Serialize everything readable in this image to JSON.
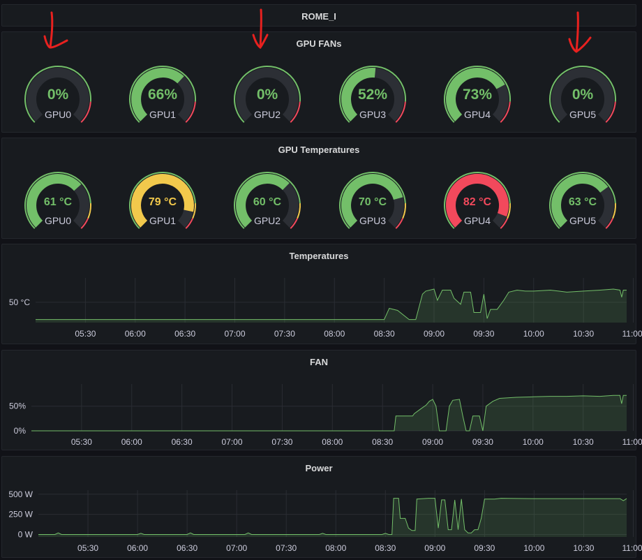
{
  "dashboard": {
    "row_title": "ROME_I"
  },
  "colors": {
    "green": "#73bf69",
    "yellow": "#f2c94c",
    "red": "#f2495c",
    "track": "#2c2f35"
  },
  "fans": {
    "title": "GPU FANs",
    "gauges": [
      {
        "label": "GPU0",
        "value": 0,
        "text": "0%"
      },
      {
        "label": "GPU1",
        "value": 66,
        "text": "66%"
      },
      {
        "label": "GPU2",
        "value": 0,
        "text": "0%"
      },
      {
        "label": "GPU3",
        "value": 52,
        "text": "52%"
      },
      {
        "label": "GPU4",
        "value": 73,
        "text": "73%"
      },
      {
        "label": "GPU5",
        "value": 0,
        "text": "0%"
      }
    ]
  },
  "temps": {
    "title": "GPU Temperatures",
    "gauges": [
      {
        "label": "GPU0",
        "value": 61,
        "text": "61 °C",
        "status": "green"
      },
      {
        "label": "GPU1",
        "value": 79,
        "text": "79 °C",
        "status": "yellow"
      },
      {
        "label": "GPU2",
        "value": 60,
        "text": "60 °C",
        "status": "green"
      },
      {
        "label": "GPU3",
        "value": 70,
        "text": "70 °C",
        "status": "green"
      },
      {
        "label": "GPU4",
        "value": 82,
        "text": "82 °C",
        "status": "red"
      },
      {
        "label": "GPU5",
        "value": 63,
        "text": "63 °C",
        "status": "green"
      }
    ]
  },
  "chart_data": [
    {
      "type": "area",
      "title": "Temperatures",
      "x_tick_labels": [
        "05:30",
        "06:00",
        "06:30",
        "07:00",
        "07:30",
        "08:00",
        "08:30",
        "09:00",
        "09:30",
        "10:00",
        "10:30",
        "11:00"
      ],
      "y_ticks": [
        {
          "label": "50 °C",
          "value": 50
        }
      ],
      "ylim": [
        30,
        74
      ],
      "x_range_min": [
        0,
        356
      ],
      "x_tick_min": [
        30,
        60,
        90,
        120,
        150,
        180,
        210,
        240,
        270,
        300,
        330,
        360
      ],
      "points": [
        [
          0,
          33
        ],
        [
          100,
          33
        ],
        [
          210,
          33
        ],
        [
          213,
          44
        ],
        [
          218,
          42
        ],
        [
          225,
          33
        ],
        [
          229,
          33
        ],
        [
          233,
          58
        ],
        [
          235,
          61
        ],
        [
          240,
          63
        ],
        [
          242,
          52
        ],
        [
          245,
          62
        ],
        [
          250,
          62
        ],
        [
          252,
          54
        ],
        [
          256,
          48
        ],
        [
          258,
          60
        ],
        [
          262,
          60
        ],
        [
          264,
          40
        ],
        [
          268,
          40
        ],
        [
          270,
          58
        ],
        [
          272,
          34
        ],
        [
          274,
          43
        ],
        [
          278,
          43
        ],
        [
          282,
          52
        ],
        [
          285,
          60
        ],
        [
          290,
          62
        ],
        [
          295,
          61
        ],
        [
          300,
          61
        ],
        [
          310,
          62
        ],
        [
          315,
          61
        ],
        [
          320,
          60
        ],
        [
          330,
          61
        ],
        [
          340,
          62
        ],
        [
          348,
          63
        ],
        [
          352,
          62
        ],
        [
          353,
          55
        ],
        [
          354,
          62
        ],
        [
          356,
          62
        ]
      ]
    },
    {
      "type": "area",
      "title": "FAN",
      "x_tick_labels": [
        "05:30",
        "06:00",
        "06:30",
        "07:00",
        "07:30",
        "08:00",
        "08:30",
        "09:00",
        "09:30",
        "10:00",
        "10:30",
        "11:00"
      ],
      "y_ticks": [
        {
          "label": "0%",
          "value": 0
        },
        {
          "label": "50%",
          "value": 50
        }
      ],
      "ylim": [
        0,
        95
      ],
      "x_range_min": [
        0,
        356
      ],
      "x_tick_min": [
        30,
        60,
        90,
        120,
        150,
        180,
        210,
        240,
        270,
        300,
        330,
        360
      ],
      "points": [
        [
          0,
          0
        ],
        [
          217,
          0
        ],
        [
          218,
          30
        ],
        [
          228,
          30
        ],
        [
          229,
          35
        ],
        [
          233,
          45
        ],
        [
          236,
          52
        ],
        [
          238,
          60
        ],
        [
          240,
          64
        ],
        [
          242,
          50
        ],
        [
          244,
          0
        ],
        [
          248,
          0
        ],
        [
          250,
          50
        ],
        [
          252,
          62
        ],
        [
          256,
          64
        ],
        [
          258,
          30
        ],
        [
          260,
          0
        ],
        [
          262,
          0
        ],
        [
          264,
          30
        ],
        [
          268,
          30
        ],
        [
          270,
          0
        ],
        [
          272,
          50
        ],
        [
          276,
          60
        ],
        [
          280,
          66
        ],
        [
          285,
          67
        ],
        [
          290,
          68
        ],
        [
          300,
          69
        ],
        [
          310,
          70
        ],
        [
          320,
          70
        ],
        [
          330,
          71
        ],
        [
          340,
          70
        ],
        [
          348,
          72
        ],
        [
          352,
          72
        ],
        [
          353,
          55
        ],
        [
          354,
          72
        ],
        [
          356,
          72
        ]
      ]
    },
    {
      "type": "area",
      "title": "Power",
      "x_tick_labels": [
        "05:30",
        "06:00",
        "06:30",
        "07:00",
        "07:30",
        "08:00",
        "08:30",
        "09:00",
        "09:30",
        "10:00",
        "10:30",
        "11:00"
      ],
      "y_ticks": [
        {
          "label": "0 W",
          "value": 0
        },
        {
          "label": "250 W",
          "value": 250
        },
        {
          "label": "500 W",
          "value": 500
        }
      ],
      "ylim": [
        -30,
        550
      ],
      "x_range_min": [
        0,
        356
      ],
      "x_tick_min": [
        30,
        60,
        90,
        120,
        150,
        180,
        210,
        240,
        270,
        300,
        330,
        360
      ],
      "points": [
        [
          0,
          0
        ],
        [
          10,
          0
        ],
        [
          12,
          20
        ],
        [
          14,
          0
        ],
        [
          60,
          0
        ],
        [
          62,
          15
        ],
        [
          64,
          0
        ],
        [
          90,
          0
        ],
        [
          92,
          20
        ],
        [
          94,
          0
        ],
        [
          125,
          0
        ],
        [
          127,
          20
        ],
        [
          129,
          0
        ],
        [
          170,
          0
        ],
        [
          172,
          15
        ],
        [
          174,
          0
        ],
        [
          208,
          0
        ],
        [
          210,
          15
        ],
        [
          212,
          0
        ],
        [
          214,
          0
        ],
        [
          215,
          450
        ],
        [
          218,
          450
        ],
        [
          219,
          200
        ],
        [
          222,
          200
        ],
        [
          224,
          80
        ],
        [
          226,
          50
        ],
        [
          228,
          50
        ],
        [
          229,
          440
        ],
        [
          236,
          450
        ],
        [
          240,
          450
        ],
        [
          242,
          80
        ],
        [
          244,
          430
        ],
        [
          246,
          430
        ],
        [
          248,
          60
        ],
        [
          250,
          60
        ],
        [
          252,
          430
        ],
        [
          254,
          60
        ],
        [
          256,
          440
        ],
        [
          258,
          60
        ],
        [
          260,
          20
        ],
        [
          262,
          20
        ],
        [
          264,
          60
        ],
        [
          266,
          60
        ],
        [
          268,
          200
        ],
        [
          270,
          440
        ],
        [
          276,
          440
        ],
        [
          280,
          450
        ],
        [
          300,
          445
        ],
        [
          320,
          445
        ],
        [
          340,
          445
        ],
        [
          352,
          445
        ],
        [
          354,
          420
        ],
        [
          356,
          445
        ]
      ]
    }
  ]
}
